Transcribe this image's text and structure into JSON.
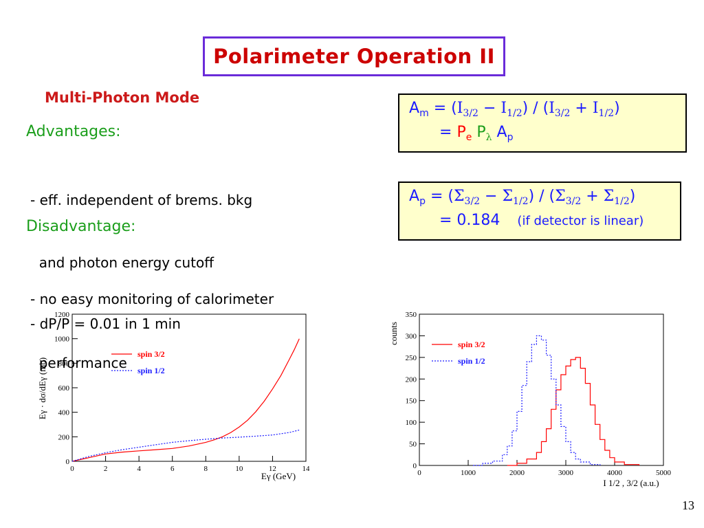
{
  "slide": {
    "title": "Polarimeter Operation II",
    "section_heading": "Multi-Photon Mode",
    "advantages_heading": "Advantages:",
    "advantages_line1": "- eff. independent of brems. bkg",
    "advantages_line2": "  and photon energy cutoff",
    "advantages_line3": "- dP/P = 0.01 in 1 min",
    "disadvantage_heading": "Disadvantage:",
    "disadvantage_line1": "- no easy monitoring of calorimeter",
    "disadvantage_line2": "  performance",
    "page_number": "13"
  },
  "formulas": {
    "am": {
      "lhs": "A",
      "lhs_sub": "m",
      "eq": " = (",
      "i32": "I",
      "i32_sub": "3/2",
      "minus": " − ",
      "i12": "I",
      "i12_sub": "1/2",
      "mid": ") / (",
      "plus": " + ",
      "close": ")",
      "line2_eq": "= ",
      "pe": "P",
      "pe_sub": "e",
      "pl": "P",
      "pl_sub": "λ",
      "ap": "A",
      "ap_sub": "p"
    },
    "ap": {
      "lhs": "A",
      "lhs_sub": "p",
      "eq": " = (",
      "s": "Σ",
      "s32_sub": "3/2",
      "minus": " − ",
      "s12_sub": "1/2",
      "mid": ") / (",
      "plus": " + ",
      "close": ")",
      "line2": "= 0.184",
      "note": "(if detector is linear)"
    }
  },
  "chart_data": [
    {
      "type": "line",
      "title": "",
      "xlabel": "Eγ (GeV)",
      "ylabel": "Eγ · dσ/dEγ (mb)",
      "xlim": [
        0,
        14
      ],
      "ylim": [
        0,
        1200
      ],
      "x_ticks": [
        "0",
        "2",
        "4",
        "6",
        "8",
        "10",
        "12",
        "14"
      ],
      "y_ticks": [
        "0",
        "200",
        "400",
        "600",
        "800",
        "1000",
        "1200"
      ],
      "legend_position": "top-right",
      "series": [
        {
          "name": "spin 3/2",
          "color": "#ff0000",
          "style": "solid",
          "x": [
            0,
            1,
            2,
            3,
            4,
            5,
            6,
            7,
            8,
            8.5,
            9,
            9.5,
            10,
            10.5,
            11,
            11.5,
            12,
            12.5,
            13,
            13.3,
            13.6
          ],
          "y": [
            0,
            30,
            60,
            75,
            85,
            95,
            105,
            125,
            155,
            175,
            200,
            235,
            280,
            335,
            405,
            490,
            590,
            700,
            830,
            910,
            1000
          ]
        },
        {
          "name": "spin 1/2",
          "color": "#1a1aff",
          "style": "dotted",
          "x": [
            0,
            1,
            2,
            3,
            4,
            5,
            6,
            7,
            8,
            9,
            10,
            11,
            12,
            13,
            13.6
          ],
          "y": [
            0,
            40,
            70,
            95,
            115,
            135,
            155,
            168,
            180,
            190,
            197,
            205,
            215,
            235,
            255
          ]
        }
      ]
    },
    {
      "type": "line",
      "title": "",
      "xlabel": "I 1/2 , 3/2 (a.u.)",
      "ylabel": "counts",
      "xlim": [
        0,
        5000
      ],
      "ylim": [
        0,
        350
      ],
      "x_ticks": [
        "0",
        "1000",
        "2000",
        "3000",
        "4000",
        "5000"
      ],
      "y_ticks": [
        "0",
        "50",
        "100",
        "150",
        "200",
        "250",
        "300",
        "350"
      ],
      "legend_position": "top-left",
      "series": [
        {
          "name": "spin 3/2",
          "color": "#ff0000",
          "style": "solid",
          "x": [
            1800,
            2000,
            2200,
            2400,
            2500,
            2600,
            2700,
            2800,
            2900,
            3000,
            3100,
            3200,
            3300,
            3400,
            3500,
            3600,
            3700,
            3800,
            3900,
            4000,
            4200,
            4500
          ],
          "y": [
            0,
            5,
            15,
            30,
            55,
            85,
            130,
            175,
            210,
            230,
            245,
            250,
            225,
            190,
            140,
            95,
            60,
            35,
            18,
            8,
            2,
            0
          ]
        },
        {
          "name": "spin 1/2",
          "color": "#1a1aff",
          "style": "dotted",
          "x": [
            1100,
            1300,
            1500,
            1700,
            1800,
            1900,
            2000,
            2100,
            2200,
            2300,
            2400,
            2500,
            2600,
            2700,
            2800,
            2900,
            3000,
            3100,
            3200,
            3300,
            3500,
            3700
          ],
          "y": [
            0,
            5,
            10,
            25,
            45,
            80,
            125,
            185,
            240,
            280,
            300,
            290,
            255,
            200,
            140,
            90,
            55,
            30,
            15,
            8,
            2,
            0
          ]
        }
      ]
    }
  ]
}
